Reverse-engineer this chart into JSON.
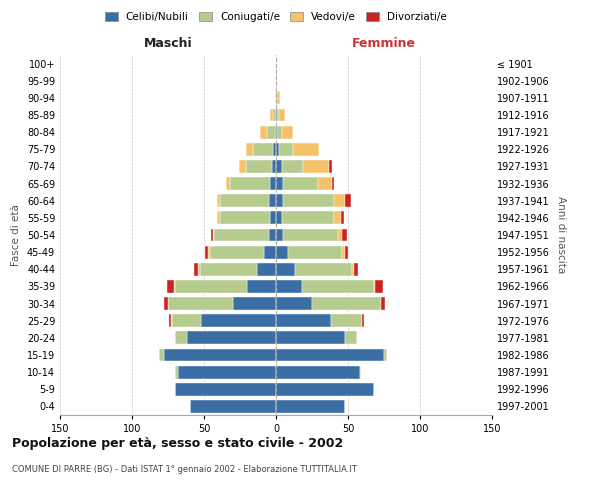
{
  "age_groups": [
    "0-4",
    "5-9",
    "10-14",
    "15-19",
    "20-24",
    "25-29",
    "30-34",
    "35-39",
    "40-44",
    "45-49",
    "50-54",
    "55-59",
    "60-64",
    "65-69",
    "70-74",
    "75-79",
    "80-84",
    "85-89",
    "90-94",
    "95-99",
    "100+"
  ],
  "birth_years": [
    "1997-2001",
    "1992-1996",
    "1987-1991",
    "1982-1986",
    "1977-1981",
    "1972-1976",
    "1967-1971",
    "1962-1966",
    "1957-1961",
    "1952-1956",
    "1947-1951",
    "1942-1946",
    "1937-1941",
    "1932-1936",
    "1927-1931",
    "1922-1926",
    "1917-1921",
    "1912-1916",
    "1907-1911",
    "1902-1906",
    "≤ 1901"
  ],
  "maschi": {
    "celibi": [
      60,
      70,
      68,
      78,
      62,
      52,
      30,
      20,
      13,
      8,
      5,
      4,
      5,
      4,
      3,
      2,
      1,
      0,
      0,
      0,
      0
    ],
    "coniugati": [
      0,
      0,
      2,
      3,
      8,
      20,
      45,
      50,
      40,
      38,
      38,
      35,
      34,
      28,
      18,
      14,
      5,
      2,
      1,
      0,
      0
    ],
    "vedovi": [
      0,
      0,
      0,
      0,
      0,
      1,
      0,
      1,
      1,
      1,
      1,
      2,
      2,
      3,
      5,
      5,
      5,
      2,
      0,
      0,
      0
    ],
    "divorziati": [
      0,
      0,
      0,
      0,
      0,
      1,
      3,
      5,
      3,
      2,
      1,
      0,
      0,
      0,
      0,
      0,
      0,
      0,
      0,
      0,
      0
    ]
  },
  "femmine": {
    "nubili": [
      48,
      68,
      58,
      75,
      48,
      38,
      25,
      18,
      13,
      8,
      5,
      4,
      5,
      5,
      4,
      2,
      1,
      1,
      0,
      0,
      0
    ],
    "coniugate": [
      0,
      0,
      1,
      2,
      8,
      22,
      48,
      50,
      40,
      38,
      38,
      36,
      35,
      24,
      15,
      10,
      3,
      1,
      1,
      0,
      0
    ],
    "vedove": [
      0,
      0,
      0,
      0,
      0,
      0,
      0,
      1,
      1,
      2,
      3,
      5,
      8,
      10,
      18,
      18,
      8,
      4,
      2,
      1,
      0
    ],
    "divorziate": [
      0,
      0,
      0,
      0,
      0,
      1,
      3,
      5,
      3,
      2,
      3,
      2,
      4,
      1,
      2,
      0,
      0,
      0,
      0,
      0,
      0
    ]
  },
  "colors": {
    "celibi": "#3a6ea5",
    "coniugati": "#b5cc8e",
    "vedovi": "#f5c26b",
    "divorziati": "#cc2222"
  },
  "legend_labels": [
    "Celibi/Nubili",
    "Coniugati/e",
    "Vedovi/e",
    "Divorziati/e"
  ],
  "title": "Popolazione per età, sesso e stato civile - 2002",
  "subtitle": "COMUNE DI PARRE (BG) - Dati ISTAT 1° gennaio 2002 - Elaborazione TUTTITALIA.IT",
  "xlabel_left": "Maschi",
  "xlabel_right": "Femmine",
  "ylabel_left": "Fasce di età",
  "ylabel_right": "Anni di nascita",
  "xlim": 150,
  "background_color": "#ffffff",
  "grid_color": "#cccccc"
}
